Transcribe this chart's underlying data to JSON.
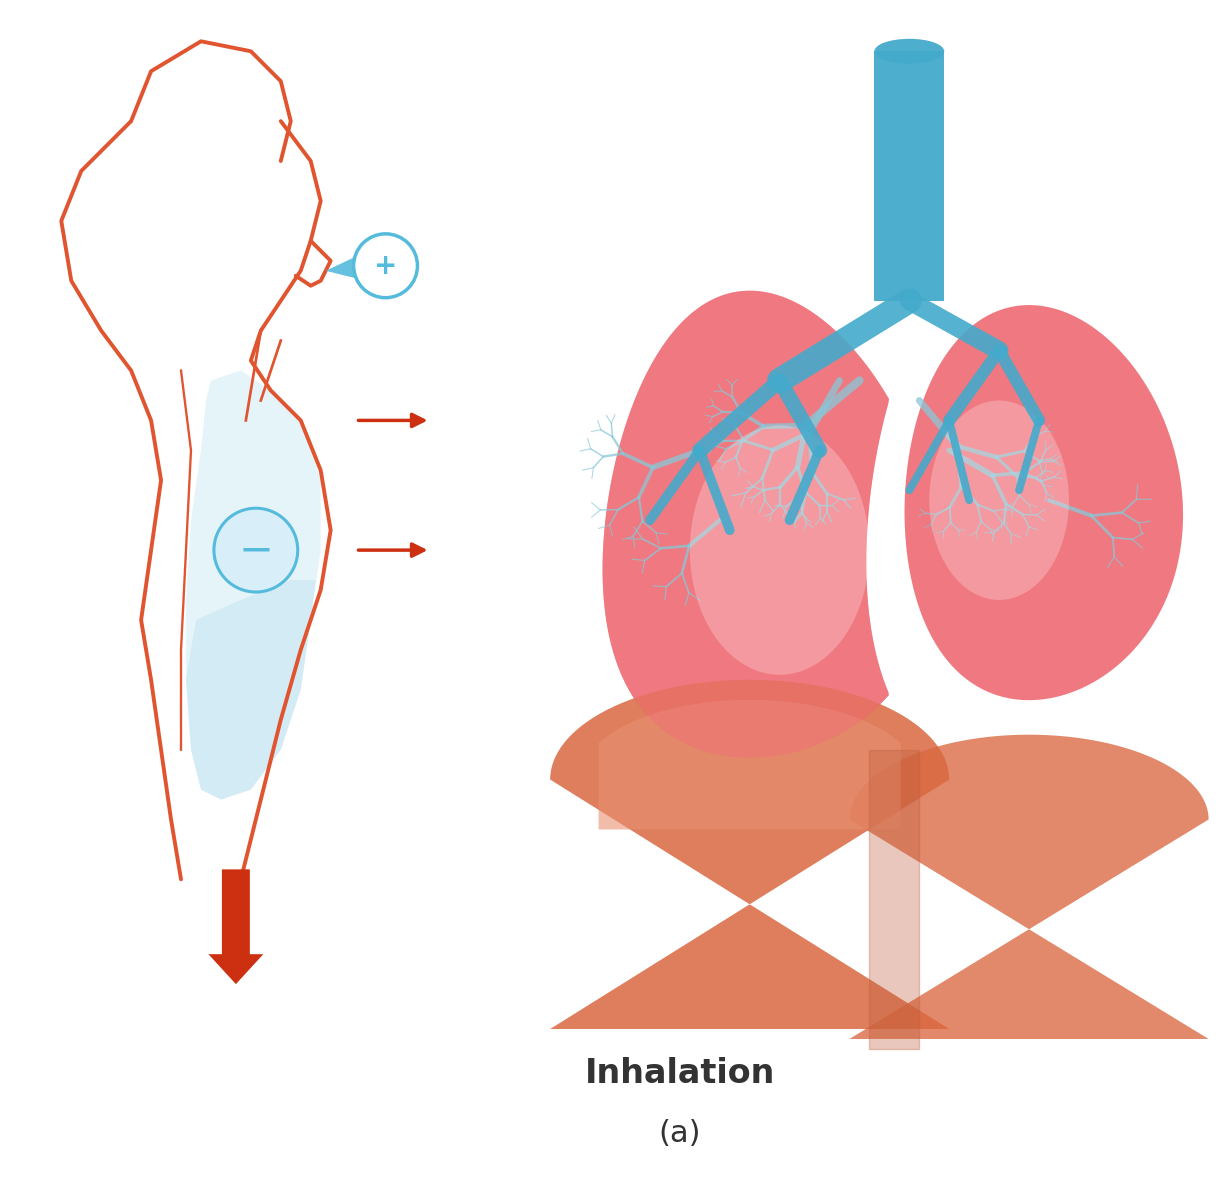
{
  "title": "Inhalation",
  "subtitle": "(a)",
  "bg_color": "#ffffff",
  "body_outline_color": "#e05530",
  "arrow_color": "#cc3010",
  "plus_circle_color": "#55bbdd",
  "lung_pink": "#f07880",
  "lung_blue_vessel": "#88c8d8",
  "diaphragm_dark": "#d96840",
  "diaphragm_light": "#e89070",
  "trachea_color": "#44aacc",
  "title_fontsize": 24,
  "subtitle_fontsize": 22,
  "title_color": "#333333",
  "cavity_fill": "#d0ecf5",
  "cavity_fill2": "#b8dff0"
}
